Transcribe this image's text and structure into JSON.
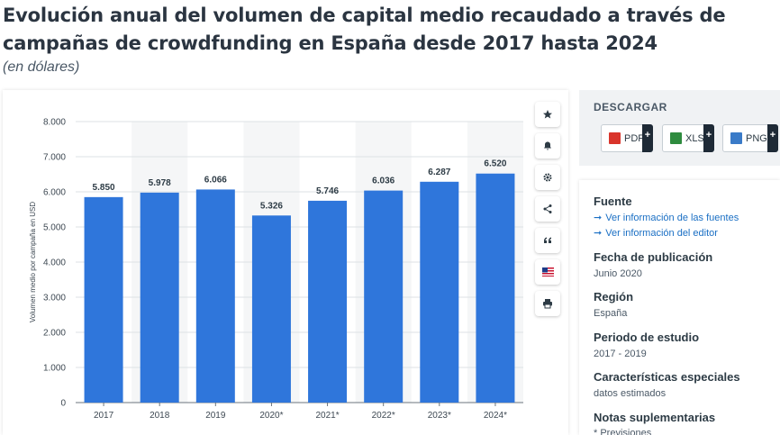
{
  "title": "Evolución anual del volumen de capital medio recaudado a través de campañas de crowdfunding en España desde 2017 hasta 2024",
  "subtitle": "(en dólares)",
  "chart_data": {
    "type": "bar",
    "categories": [
      "2017",
      "2018",
      "2019",
      "2020*",
      "2021*",
      "2022*",
      "2023*",
      "2024*"
    ],
    "values": [
      5850,
      5978,
      6066,
      5326,
      5746,
      6036,
      6287,
      6520
    ],
    "value_labels": [
      "5.850",
      "5.978",
      "6.066",
      "5.326",
      "5.746",
      "6.036",
      "6.287",
      "6.520"
    ],
    "ylabel": "Volumen medio por campaña en USD",
    "ylim": [
      0,
      8000
    ],
    "yticks": [
      0,
      1000,
      2000,
      3000,
      4000,
      5000,
      6000,
      7000,
      8000
    ],
    "ytick_labels": [
      "0",
      "1.000",
      "2.000",
      "3.000",
      "4.000",
      "5.000",
      "6.000",
      "7.000",
      "8.000"
    ],
    "bar_color": "#2f76db",
    "grid": true,
    "alternating_bands": true
  },
  "toolbar": {
    "icons": [
      "star-icon",
      "bell-icon",
      "gear-icon",
      "share-icon",
      "quote-icon",
      "flag-icon",
      "print-icon"
    ]
  },
  "download": {
    "title": "DESCARGAR",
    "buttons": [
      {
        "label": "PDF",
        "color": "#d9342b"
      },
      {
        "label": "XLS",
        "color": "#2e8b3e"
      },
      {
        "label": "PNG",
        "color": "#3a7bc8"
      }
    ],
    "plus": "+"
  },
  "info": {
    "source_head": "Fuente",
    "source_links": [
      "Ver información de las fuentes",
      "Ver información del editor"
    ],
    "pub_head": "Fecha de publicación",
    "pub_val": "Junio 2020",
    "region_head": "Región",
    "region_val": "España",
    "period_head": "Periodo de estudio",
    "period_val": "2017 - 2019",
    "features_head": "Características especiales",
    "features_val": "datos estimados",
    "notes_head": "Notas suplementarias",
    "notes_val": "* Previsiones"
  }
}
